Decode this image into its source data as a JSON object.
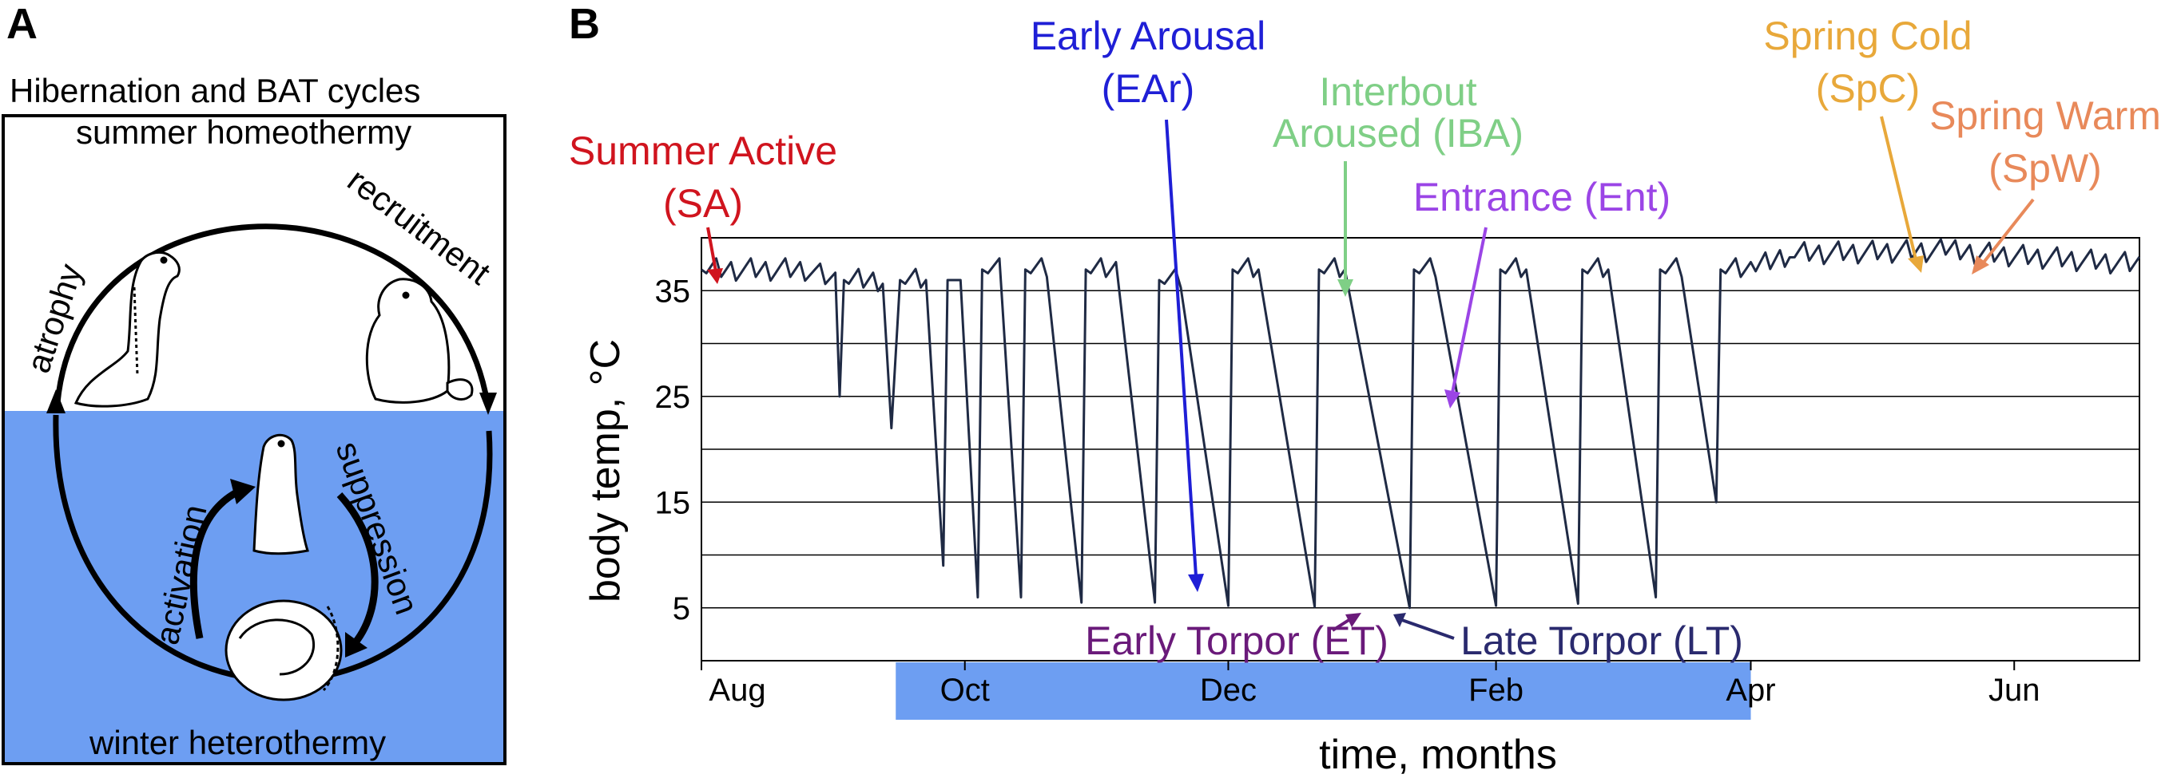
{
  "panel_a": {
    "letter": "A",
    "title": "Hibernation and BAT cycles",
    "top_label": "summer homeothermy",
    "bottom_label": "winter heterothermy",
    "arc_labels": {
      "left": "atrophy",
      "right": "recruitment",
      "inner_left": "activation",
      "inner_right": "suppression"
    },
    "colors": {
      "winter_fill": "#6d9ef2",
      "outline": "#000000"
    }
  },
  "panel_b": {
    "letter": "B",
    "annotations": {
      "summer_active": {
        "line1": "Summer Active",
        "line2": "(SA)",
        "color": "#d0141e"
      },
      "early_arousal": {
        "line1": "Early Arousal",
        "line2": "(EAr)",
        "color": "#1f1fd6"
      },
      "interbout": {
        "line1": "Interbout",
        "line2": "Aroused (IBA)",
        "color": "#7fcf86"
      },
      "entrance": {
        "line1": "Entrance (Ent)",
        "color": "#9b45e6"
      },
      "spring_cold": {
        "line1": "Spring Cold",
        "line2": "(SpC)",
        "color": "#e8a83a"
      },
      "spring_warm": {
        "line1": "Spring Warm",
        "line2": "(SpW)",
        "color": "#e8895a"
      },
      "early_torpor": {
        "line1": "Early Torpor (ET)",
        "color": "#6a1a7a"
      },
      "late_torpor": {
        "line1": "Late Torpor (LT)",
        "color": "#2a2a6e"
      }
    },
    "hibernation_band_color": "#6d9ef2",
    "trace_color": "#1f2a44"
  },
  "chart_data": {
    "type": "line",
    "title": "",
    "xlabel": "time, months",
    "ylabel": "body temp, °C",
    "x_ticks": [
      "Aug",
      "Oct",
      "Dec",
      "Feb",
      "Apr",
      "Jun"
    ],
    "y_ticks": [
      5,
      15,
      25,
      35
    ],
    "ylim": [
      0,
      40
    ],
    "xlim": [
      "Aug 1",
      "Jun 30"
    ],
    "grid": "horizontal lines every 5 °C",
    "hibernation_band": [
      "Sep 15",
      "Apr 1"
    ],
    "series": [
      {
        "values_description": "daily body temperature trace",
        "points": [
          [
            "Aug 1",
            37
          ],
          [
            "Aug 25",
            37
          ],
          [
            "Sep 1",
            36
          ],
          [
            "Sep 2",
            25
          ],
          [
            "Sep 3",
            36
          ],
          [
            "Sep 12",
            36
          ],
          [
            "Sep 14",
            22
          ],
          [
            "Sep 16",
            36
          ],
          [
            "Sep 22",
            36
          ],
          [
            "Sep 26",
            9
          ],
          [
            "Sep 27",
            36
          ],
          [
            "Sep 30",
            36
          ],
          [
            "Oct 4",
            6
          ],
          [
            "Oct 5",
            37
          ],
          [
            "Oct 9",
            37
          ],
          [
            "Oct 14",
            6
          ],
          [
            "Oct 15",
            37
          ],
          [
            "Oct 20",
            37
          ],
          [
            "Oct 28",
            5.5
          ],
          [
            "Oct 29",
            37
          ],
          [
            "Nov 5",
            37
          ],
          [
            "Nov 14",
            5.5
          ],
          [
            "Nov 15",
            36
          ],
          [
            "Nov 20",
            36
          ],
          [
            "Dec 1",
            5.2
          ],
          [
            "Dec 2",
            37
          ],
          [
            "Dec 8",
            37
          ],
          [
            "Dec 21",
            5.1
          ],
          [
            "Dec 22",
            37
          ],
          [
            "Dec 28",
            37
          ],
          [
            "Jan 12",
            5
          ],
          [
            "Jan 13",
            37
          ],
          [
            "Jan 18",
            37
          ],
          [
            "Feb 1",
            5.2
          ],
          [
            "Feb 2",
            37
          ],
          [
            "Feb 8",
            37
          ],
          [
            "Feb 20",
            5.4
          ],
          [
            "Feb 21",
            37
          ],
          [
            "Feb 27",
            37
          ],
          [
            "Mar 10",
            6
          ],
          [
            "Mar 11",
            37
          ],
          [
            "Mar 16",
            37
          ],
          [
            "Mar 24",
            15
          ],
          [
            "Mar 25",
            37
          ],
          [
            "Apr 1",
            37
          ],
          [
            "Apr 10",
            38.5
          ],
          [
            "May 15",
            38.8
          ],
          [
            "Jun 30",
            37.5
          ]
        ]
      }
    ]
  }
}
